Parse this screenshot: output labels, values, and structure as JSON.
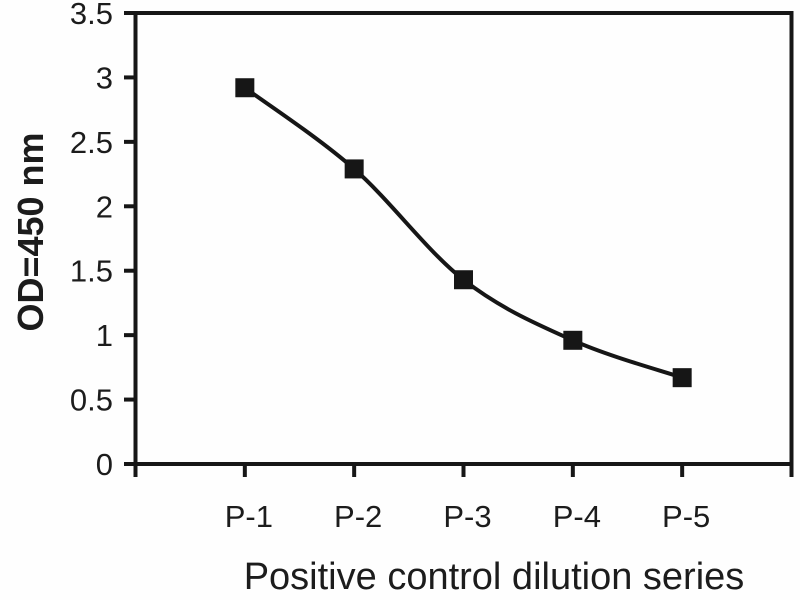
{
  "figure": {
    "background": "#ffffff"
  },
  "chart_data": {
    "type": "line",
    "subtype": "smooth-line-with-square-markers",
    "title": "",
    "xlabel": "Positive control dilution series",
    "ylabel": "OD=450 nm",
    "categories": [
      "P-1",
      "P-2",
      "P-3",
      "P-4",
      "P-5"
    ],
    "series": [
      {
        "name": "Positive control dilution series",
        "values": [
          2.92,
          2.29,
          1.43,
          0.96,
          0.67
        ]
      }
    ],
    "ylim": [
      0,
      3.5
    ],
    "yticks": [
      0,
      0.5,
      1,
      1.5,
      2,
      2.5,
      3,
      3.5
    ],
    "ytick_labels": [
      "0",
      "0.5",
      "1",
      "1.5",
      "2",
      "2.5",
      "3",
      "3.5"
    ],
    "grid": false,
    "legend": "none",
    "marker": "filled-square",
    "colors": {
      "line": "#161616",
      "marker": "#161616",
      "axis": "#161616",
      "text": "#1c1c1c",
      "background": "#fefefe"
    }
  }
}
